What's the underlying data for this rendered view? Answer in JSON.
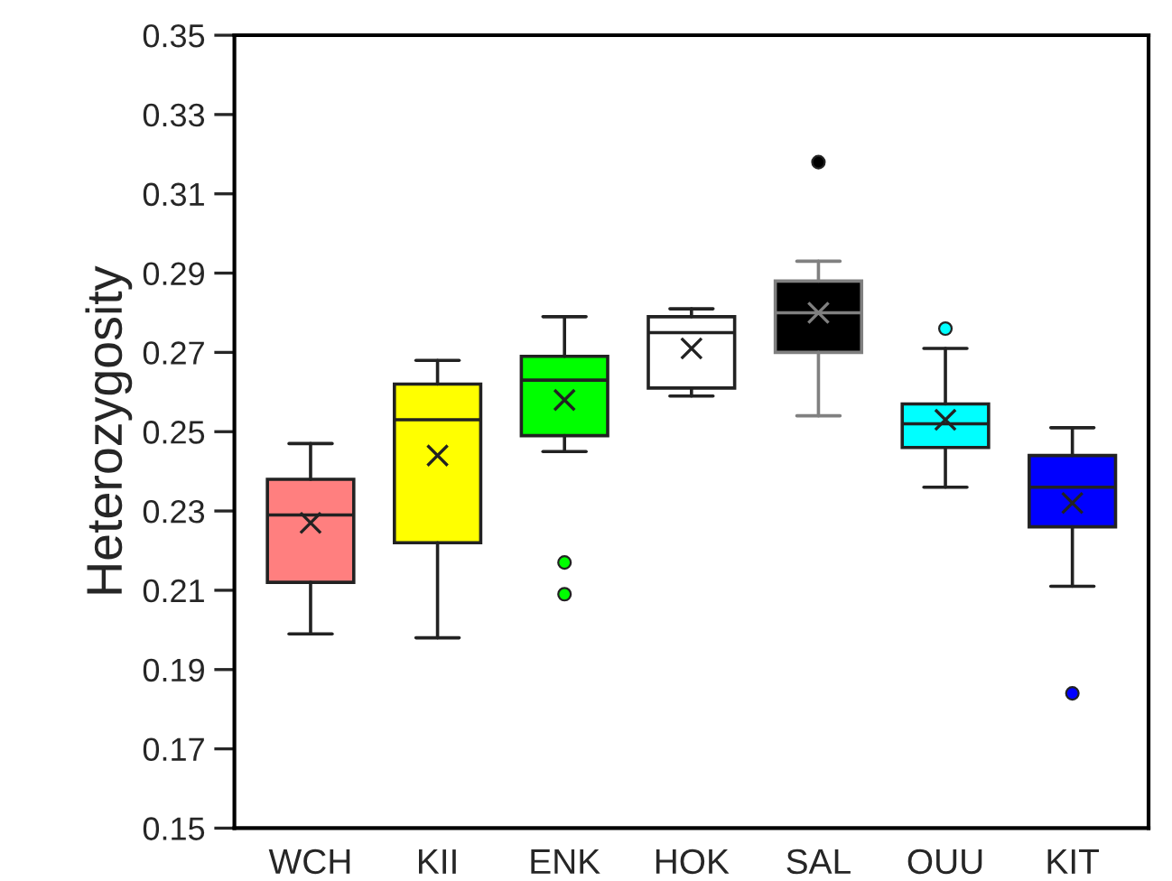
{
  "chart_data": {
    "type": "box",
    "ylabel": "Heterozygosity",
    "categories": [
      "WCH",
      "KII",
      "ENK",
      "HOK",
      "SAL",
      "OUU",
      "KIT"
    ],
    "colors": [
      "#ff7f7f",
      "#ffff00",
      "#00ff00",
      "#ffffff",
      "#000000",
      "#00ffff",
      "#0000ff"
    ],
    "boxes": [
      {
        "low": 0.199,
        "q1": 0.212,
        "median": 0.229,
        "q3": 0.238,
        "high": 0.247,
        "mean": 0.227
      },
      {
        "low": 0.198,
        "q1": 0.222,
        "median": 0.253,
        "q3": 0.262,
        "high": 0.268,
        "mean": 0.244
      },
      {
        "low": 0.245,
        "q1": 0.249,
        "median": 0.263,
        "q3": 0.269,
        "high": 0.279,
        "mean": 0.258,
        "outliers": [
          0.217,
          0.209
        ]
      },
      {
        "low": 0.259,
        "q1": 0.261,
        "median": 0.275,
        "q3": 0.279,
        "high": 0.281,
        "mean": 0.271
      },
      {
        "low": 0.254,
        "q1": 0.27,
        "median": 0.28,
        "q3": 0.288,
        "high": 0.293,
        "mean": 0.28,
        "outliers": [
          0.318
        ]
      },
      {
        "low": 0.236,
        "q1": 0.246,
        "median": 0.252,
        "q3": 0.257,
        "high": 0.271,
        "mean": 0.253,
        "outliers": [
          0.276
        ]
      },
      {
        "low": 0.211,
        "q1": 0.226,
        "median": 0.236,
        "q3": 0.244,
        "high": 0.251,
        "mean": 0.232,
        "outliers": [
          0.184
        ]
      }
    ],
    "ylim": [
      0.15,
      0.35
    ],
    "yticks": [
      0.15,
      0.17,
      0.19,
      0.21,
      0.23,
      0.25,
      0.27,
      0.29,
      0.31,
      0.33,
      0.35
    ],
    "grid": false,
    "legend": false
  }
}
